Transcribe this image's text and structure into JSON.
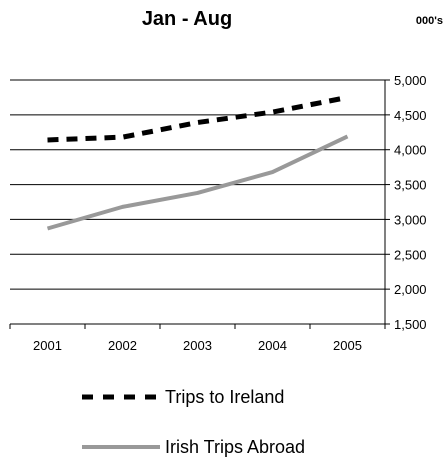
{
  "chart_data": {
    "type": "line",
    "title": "Jan - Aug",
    "units_label": "000's",
    "xlabel": "",
    "ylabel": "",
    "categories": [
      "2001",
      "2002",
      "2003",
      "2004",
      "2005"
    ],
    "y_ticks": [
      "5,000",
      "4,500",
      "4,000",
      "3,500",
      "3,000",
      "2,500",
      "2,000",
      "1,500"
    ],
    "y_tick_values": [
      5000,
      4500,
      4000,
      3500,
      3000,
      2500,
      2000,
      1500
    ],
    "ylim": [
      1500,
      5000
    ],
    "grid": true,
    "legend_position": "bottom",
    "series": [
      {
        "name": "Trips to Ireland",
        "values": [
          4140,
          4180,
          4390,
          4540,
          4750
        ],
        "color": "#000000",
        "style": "dashed"
      },
      {
        "name": "Irish Trips Abroad",
        "values": [
          2870,
          3180,
          3380,
          3680,
          4190
        ],
        "color": "#999999",
        "style": "solid"
      }
    ]
  }
}
